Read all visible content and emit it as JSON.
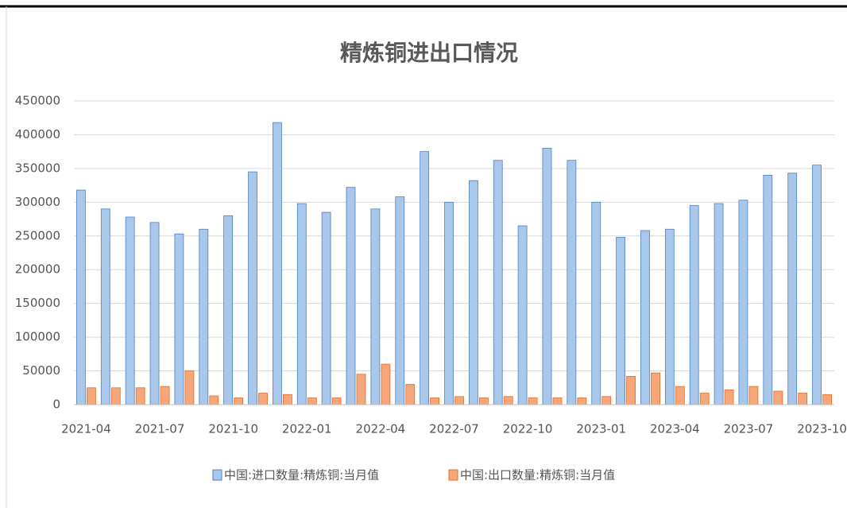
{
  "chart_data": {
    "type": "bar",
    "title": "精炼铜进出口情况",
    "categories": [
      "2021-04",
      null,
      null,
      "2021-07",
      null,
      null,
      "2021-10",
      null,
      null,
      "2022-01",
      null,
      null,
      "2022-04",
      null,
      null,
      "2022-07",
      null,
      null,
      "2022-10",
      null,
      null,
      "2023-01",
      null,
      null,
      "2023-04",
      null,
      null,
      "2023-07",
      null,
      null,
      "2023-10"
    ],
    "series": [
      {
        "name": "中国:进口数量:精炼铜:当月值",
        "color": "#a9c7eb",
        "values": [
          318000,
          290000,
          278000,
          270000,
          253000,
          260000,
          280000,
          345000,
          418000,
          298000,
          285000,
          322000,
          290000,
          308000,
          375000,
          300000,
          332000,
          362000,
          265000,
          380000,
          362000,
          300000,
          248000,
          258000,
          260000,
          295000,
          298000,
          303000,
          340000,
          343000,
          355000
        ]
      },
      {
        "name": "中国:出口数量:精炼铜:当月值",
        "color": "#f5a77a",
        "values": [
          25000,
          25000,
          25000,
          27000,
          50000,
          13000,
          10000,
          17000,
          15000,
          10000,
          10000,
          45000,
          60000,
          30000,
          10000,
          12000,
          10000,
          12000,
          10000,
          10000,
          10000,
          12000,
          42000,
          47000,
          27000,
          17000,
          22000,
          27000,
          20000,
          17000,
          15000
        ]
      }
    ],
    "ylim": [
      0,
      450000
    ],
    "yticks": [
      0,
      50000,
      100000,
      150000,
      200000,
      250000,
      300000,
      350000,
      400000,
      450000
    ],
    "grid": true
  }
}
